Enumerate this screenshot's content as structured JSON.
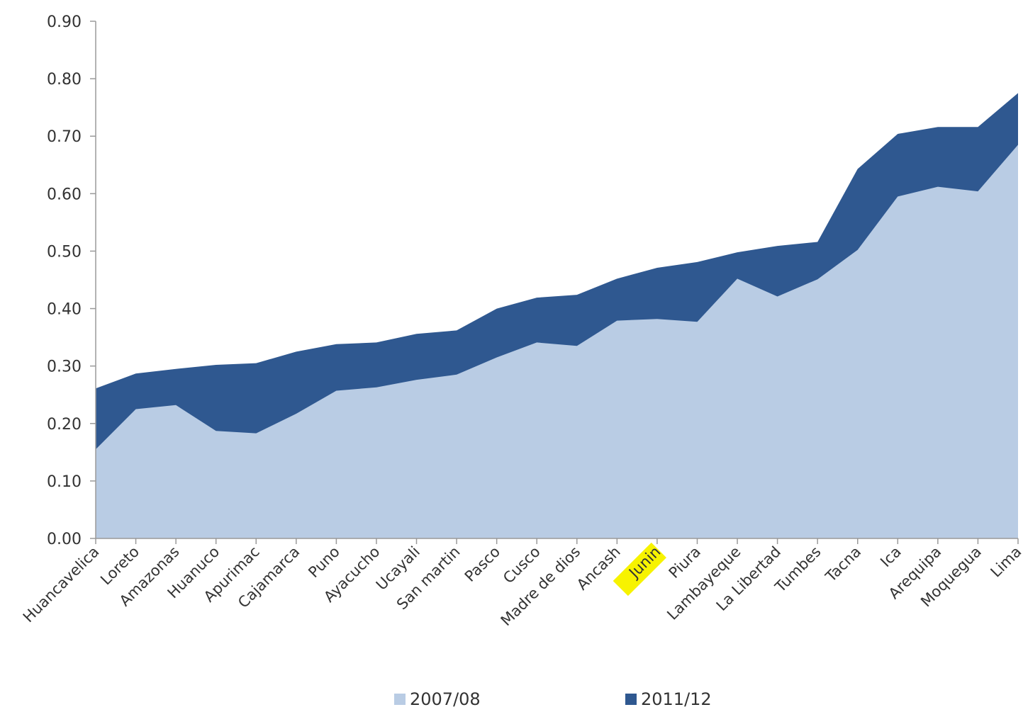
{
  "chart_data": {
    "type": "area",
    "title": "",
    "xlabel": "",
    "ylabel": "",
    "ylim": [
      0,
      0.9
    ],
    "yticks": [
      "0.00",
      "0.10",
      "0.20",
      "0.30",
      "0.40",
      "0.50",
      "0.60",
      "0.70",
      "0.80",
      "0.90"
    ],
    "grid": false,
    "legend": "bottom",
    "highlighted_category": "Junin",
    "highlight_color": "#f7f300",
    "categories": [
      "Huancavelica",
      "Loreto",
      "Amazonas",
      "Huanuco",
      "Apurimac",
      "Cajamarca",
      "Puno",
      "Ayacucho",
      "Ucayali",
      "San martin",
      "Pasco",
      "Cusco",
      "Madre de dios",
      "Ancash",
      "Junin",
      "Piura",
      "Lambayeque",
      "La Libertad",
      "Tumbes",
      "Tacna",
      "Ica",
      "Arequipa",
      "Moquegua",
      "Lima"
    ],
    "series": [
      {
        "name": "2007/08",
        "color": "#b9cce4",
        "values": [
          0.155,
          0.225,
          0.232,
          0.187,
          0.183,
          0.217,
          0.257,
          0.263,
          0.276,
          0.285,
          0.315,
          0.341,
          0.335,
          0.379,
          0.382,
          0.377,
          0.452,
          0.421,
          0.451,
          0.502,
          0.595,
          0.612,
          0.604,
          0.685
        ]
      },
      {
        "name": "2011/12",
        "color": "#2f5890",
        "values": [
          0.261,
          0.287,
          0.295,
          0.302,
          0.305,
          0.325,
          0.338,
          0.341,
          0.356,
          0.362,
          0.4,
          0.419,
          0.424,
          0.452,
          0.471,
          0.481,
          0.498,
          0.509,
          0.516,
          0.643,
          0.704,
          0.716,
          0.716,
          0.775
        ]
      }
    ]
  }
}
